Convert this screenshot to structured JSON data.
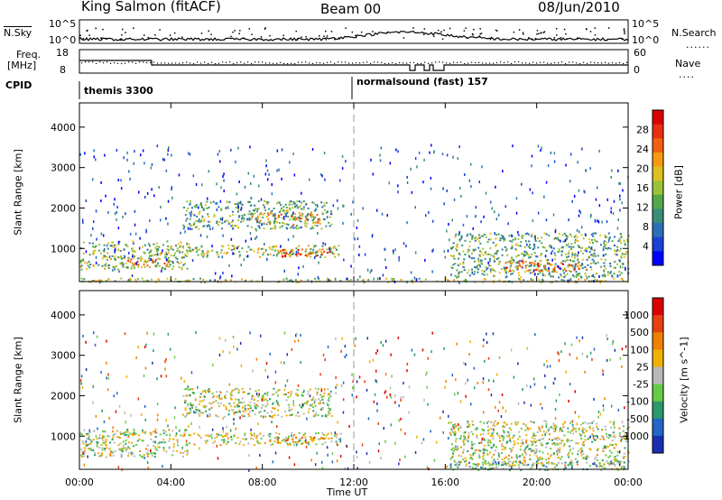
{
  "header": {
    "station": "King Salmon (fitACF)",
    "beam": "Beam 00",
    "date": "08/Jun/2010"
  },
  "top_panel": {
    "nsky_label": "N.Sky",
    "nsearch_label": "N.Search",
    "left_ticks": [
      "10^5",
      "10^0"
    ],
    "right_ticks": [
      "10^5",
      "10^0"
    ],
    "freq_label_1": "Freq.",
    "freq_label_2": "[MHz]",
    "freq_ticks": [
      "18",
      "8"
    ],
    "nave_label": "Nave",
    "nave_ticks": [
      "60",
      "0"
    ],
    "cpid_label": "CPID",
    "cpid_segments": [
      {
        "name": "themis 3300",
        "start_hour": 0
      },
      {
        "name": "normalsound (fast) 157",
        "start_hour": 12
      }
    ]
  },
  "chart_data": [
    {
      "type": "heatmap",
      "name": "power",
      "ylabel": "Slant Range [km]",
      "colorbar_label": "Power [dB]",
      "colorbar_ticks": [
        "28",
        "24",
        "20",
        "16",
        "12",
        "8",
        "4"
      ],
      "colors": [
        "#0000ff",
        "#1a40d8",
        "#2a70b8",
        "#3b8e76",
        "#55a84a",
        "#9cc23a",
        "#e0c020",
        "#f59a10",
        "#f06010",
        "#e83010",
        "#dd0000"
      ],
      "y_ticks": [
        1000,
        2000,
        3000,
        4000
      ],
      "ylim": [
        180,
        4600
      ],
      "x_ticks": [
        "00:00",
        "04:00",
        "08:00",
        "12:00",
        "16:00",
        "20:00",
        "00:00"
      ],
      "xlim_hours": [
        0,
        24
      ],
      "regions": [
        {
          "t0": 0.0,
          "t1": 4.8,
          "r0": 500,
          "r1": 1200,
          "v": 0.45
        },
        {
          "t0": 2.0,
          "t1": 4.0,
          "r0": 550,
          "r1": 800,
          "v": 0.7
        },
        {
          "t0": 4.8,
          "t1": 11.5,
          "r0": 800,
          "r1": 1100,
          "v": 0.5
        },
        {
          "t0": 8.5,
          "t1": 11.0,
          "r0": 820,
          "r1": 1000,
          "v": 0.85
        },
        {
          "t0": 4.5,
          "t1": 11.0,
          "r0": 1500,
          "r1": 2200,
          "v": 0.4
        },
        {
          "t0": 7.5,
          "t1": 10.5,
          "r0": 1600,
          "r1": 1900,
          "v": 0.65
        },
        {
          "t0": 16.2,
          "t1": 24.0,
          "r0": 300,
          "r1": 1400,
          "v": 0.4
        },
        {
          "t0": 18.5,
          "t1": 22.0,
          "r0": 450,
          "r1": 700,
          "v": 0.75
        },
        {
          "t0": 0.0,
          "t1": 24.0,
          "r0": 180,
          "r1": 280,
          "v": 0.5
        }
      ]
    },
    {
      "type": "heatmap",
      "name": "velocity",
      "ylabel": "Slant Range [km]",
      "colorbar_label": "Velocity [m s^-1]",
      "colorbar_ticks": [
        "1000",
        "500",
        "100",
        "25",
        "-25",
        "-100",
        "-500",
        "-1000"
      ],
      "colors": [
        "#1a2fb0",
        "#2266c8",
        "#2a9a6a",
        "#66cc44",
        "#b8b8b8",
        "#f0b000",
        "#f08000",
        "#e84010",
        "#dd0000"
      ],
      "y_ticks": [
        1000,
        2000,
        3000,
        4000
      ],
      "ylim": [
        180,
        4600
      ],
      "x_ticks": [
        "00:00",
        "04:00",
        "08:00",
        "12:00",
        "16:00",
        "20:00",
        "00:00"
      ],
      "xlabel": "Time UT",
      "xlim_hours": [
        0,
        24
      ],
      "regions": [
        {
          "t0": 0.0,
          "t1": 4.8,
          "r0": 500,
          "r1": 1200,
          "v": 0.48
        },
        {
          "t0": 4.8,
          "t1": 11.5,
          "r0": 800,
          "r1": 1100,
          "v": 0.5
        },
        {
          "t0": 8.5,
          "t1": 11.0,
          "r0": 820,
          "r1": 1000,
          "v": 0.6
        },
        {
          "t0": 4.5,
          "t1": 11.0,
          "r0": 1500,
          "r1": 2200,
          "v": 0.48
        },
        {
          "t0": 16.2,
          "t1": 24.0,
          "r0": 300,
          "r1": 1400,
          "v": 0.48
        },
        {
          "t0": 16.2,
          "t1": 24.0,
          "r0": 180,
          "r1": 400,
          "v": 0.35
        }
      ]
    }
  ]
}
